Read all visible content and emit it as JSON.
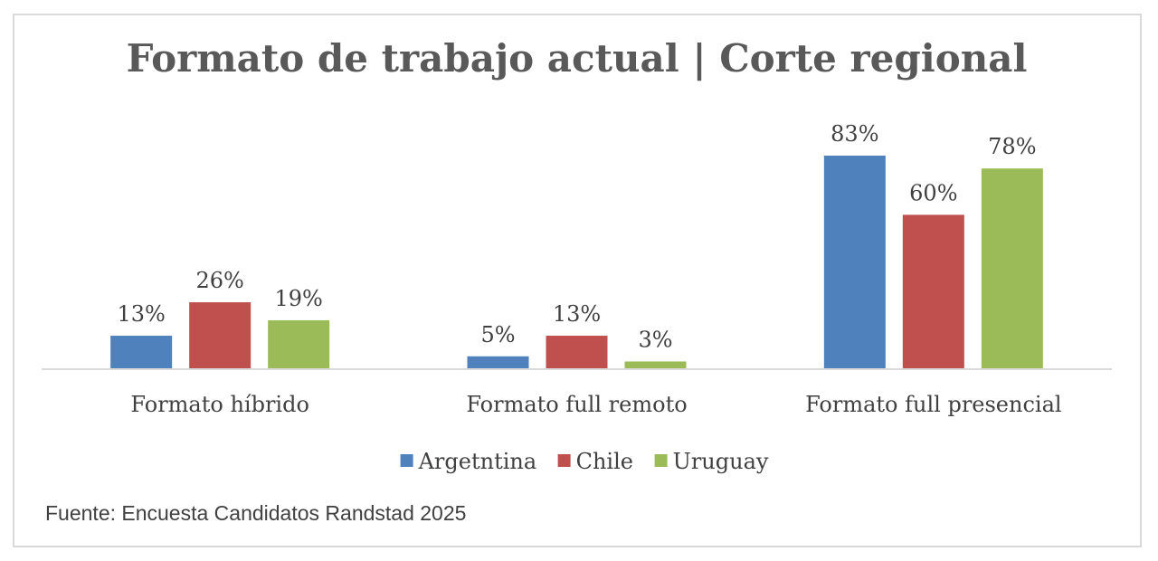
{
  "chart_data": {
    "type": "bar",
    "title": "Formato de trabajo actual | Corte regional",
    "categories": [
      "Formato híbrido",
      "Formato full remoto",
      "Formato full presencial"
    ],
    "series": [
      {
        "name": "Argetntina",
        "values": [
          13,
          5,
          83
        ],
        "labels": [
          "13%",
          "5%",
          "83%"
        ],
        "color": "#4f81bd"
      },
      {
        "name": "Chile",
        "values": [
          26,
          13,
          60
        ],
        "labels": [
          "26%",
          "13%",
          "60%"
        ],
        "color": "#c0504d"
      },
      {
        "name": "Uruguay",
        "values": [
          19,
          3,
          78
        ],
        "labels": [
          "19%",
          "3%",
          "78%"
        ],
        "color": "#9bbb59"
      }
    ],
    "value_unit": "%",
    "xlabel": "",
    "ylabel": "",
    "ylim": [
      0,
      83
    ],
    "grid": false,
    "legend": "bottom"
  },
  "source": "Fuente: Encuesta Candidatos Randstad 2025"
}
